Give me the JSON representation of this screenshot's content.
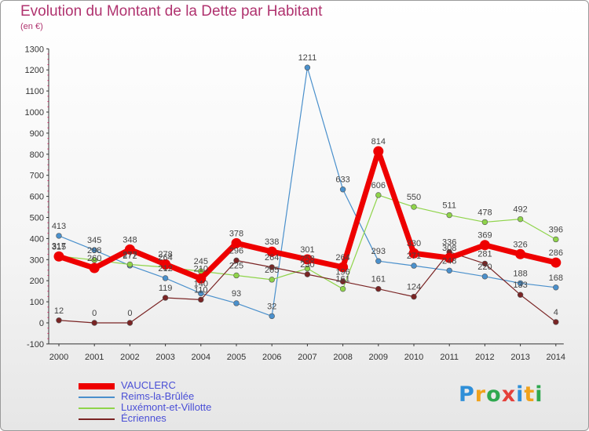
{
  "header": {
    "title": "Evolution du Montant de la Dette par Habitant",
    "subtitle": "(en €)"
  },
  "logo": {
    "letters": [
      "P",
      "r",
      "o",
      "x",
      "i",
      "t",
      "i"
    ],
    "colors": [
      "#2f8fd8",
      "#f0a21c",
      "#2fa84f",
      "#e5403a",
      "#2f8fd8",
      "#f0a21c",
      "#2fa84f"
    ]
  },
  "chart_data": {
    "type": "line",
    "x": [
      "2000",
      "2001",
      "2002",
      "2003",
      "2004",
      "2005",
      "2006",
      "2007",
      "2008",
      "2009",
      "2010",
      "2011",
      "2012",
      "2013",
      "2014"
    ],
    "ylim": [
      -100,
      1300
    ],
    "yticks": [
      -100,
      0,
      100,
      200,
      300,
      400,
      500,
      600,
      700,
      800,
      900,
      1000,
      1100,
      1200,
      1300
    ],
    "grid": false,
    "legend_position": "bottom-left",
    "series": [
      {
        "name": "Reims-la-Brûlée",
        "color": "#4a90cc",
        "values": [
          413,
          345,
          272,
          212,
          140,
          93,
          32,
          1211,
          633,
          293,
          271,
          248,
          220,
          188,
          168
        ]
      },
      {
        "name": "Luxémont-et-Villotte",
        "color": "#8fd44a",
        "values": [
          317,
          298,
          277,
          264,
          245,
          225,
          205,
          258,
          161,
          606,
          550,
          511,
          478,
          492,
          396
        ]
      },
      {
        "name": "Écriennes",
        "color": "#7a2424",
        "values": [
          12,
          0,
          0,
          119,
          110,
          296,
          264,
          230,
          196,
          161,
          124,
          336,
          281,
          133,
          4
        ]
      },
      {
        "name": "VAUCLERC",
        "color": "#ee0000",
        "values": [
          315,
          260,
          348,
          278,
          210,
          378,
          338,
          301,
          264,
          814,
          330,
          308,
          369,
          326,
          286
        ]
      }
    ],
    "legend_order": [
      3,
      0,
      1,
      2
    ]
  }
}
